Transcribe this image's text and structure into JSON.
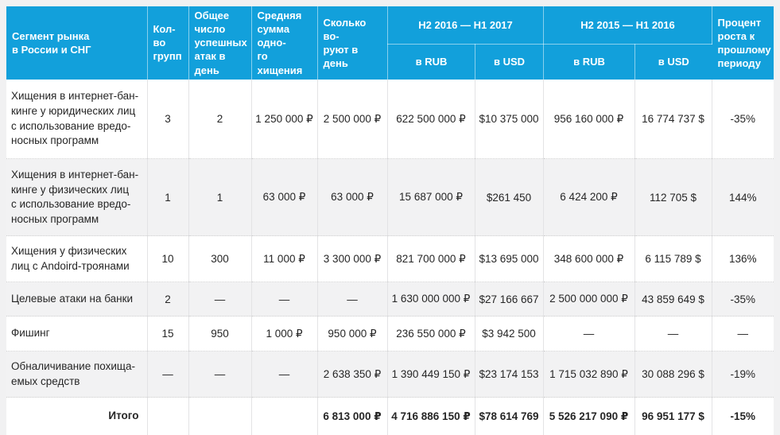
{
  "colors": {
    "header_bg": "#12A0DB",
    "row_alt_bg": "#F2F2F3",
    "page_bg": "#F1F1F2",
    "text": "#262626"
  },
  "table": {
    "header": {
      "segment": "Сегмент рынка\nв России и СНГ",
      "groups_count": "Кол-во\nгрупп",
      "attacks_per_day": "Общее\nчисло\nуспешных\nатак в день",
      "avg_theft": "Средняя\nсумма одно-\nго хищения",
      "daily_theft": "Сколько во-\nруют в день",
      "period_2016_2017": "H2 2016 — H1 2017",
      "period_2015_2016": "H2 2015 — H1 2016",
      "in_rub_2016": "в RUB",
      "in_usd_2016": "в USD",
      "in_rub_2015": "в RUB",
      "in_usd_2015": "в USD",
      "growth": "Процент\nроста к\nпрошлому\nпериоду"
    },
    "rows": [
      {
        "segment": "Хищения в интернет-бан-\nкинге у юридических лиц\nс использование вредо-\nносных программ",
        "groups": "3",
        "attacks": "2",
        "avg": "1 250 000 ₽",
        "daily": "2 500 000 ₽",
        "rub1": "622 500 000 ₽",
        "usd1": "$10 375 000",
        "rub2": "956 160 000 ₽",
        "usd2": "16 774 737 $",
        "growth": "-35%"
      },
      {
        "segment": "Хищения в интернет-бан-\nкинге у физических лиц\nс использование вредо-\nносных программ",
        "groups": "1",
        "attacks": "1",
        "avg": "63 000 ₽",
        "daily": "63 000 ₽",
        "rub1": "15 687 000 ₽",
        "usd1": "$261 450",
        "rub2": "6 424 200 ₽",
        "usd2": "112 705 $",
        "growth": "144%"
      },
      {
        "segment": "Хищения у физических\nлиц с Andoird-троянами",
        "groups": "10",
        "attacks": "300",
        "avg": "11 000 ₽",
        "daily": "3 300 000 ₽",
        "rub1": "821 700 000 ₽",
        "usd1": "$13 695 000",
        "rub2": "348 600 000 ₽",
        "usd2": "6 115 789 $",
        "growth": "136%"
      },
      {
        "segment": "Целевые атаки на банки",
        "groups": "2",
        "attacks": "—",
        "avg": "—",
        "daily": "—",
        "rub1": "1 630 000 000 ₽",
        "usd1": "$27 166 667",
        "rub2": "2 500 000 000 ₽",
        "usd2": "43 859 649 $",
        "growth": "-35%"
      },
      {
        "segment": "Фишинг",
        "groups": "15",
        "attacks": "950",
        "avg": "1 000 ₽",
        "daily": "950 000 ₽",
        "rub1": "236 550 000 ₽",
        "usd1": "$3 942 500",
        "rub2": "—",
        "usd2": "—",
        "growth": "—"
      },
      {
        "segment": "Обналичивание похища-\nемых средств",
        "groups": "—",
        "attacks": "—",
        "avg": "—",
        "daily": "2 638 350 ₽",
        "rub1": "1 390 449 150 ₽",
        "usd1": "$23 174 153",
        "rub2": "1 715 032 890 ₽",
        "usd2": "30 088 296 $",
        "growth": "-19%"
      }
    ],
    "total": {
      "label": "Итого",
      "daily": "6 813 000 ₽",
      "rub1": "4 716 886 150 ₽",
      "usd1": "$78 614 769",
      "rub2": "5 526 217 090 ₽",
      "usd2": "96 951 177 $",
      "growth": "-15%"
    }
  }
}
